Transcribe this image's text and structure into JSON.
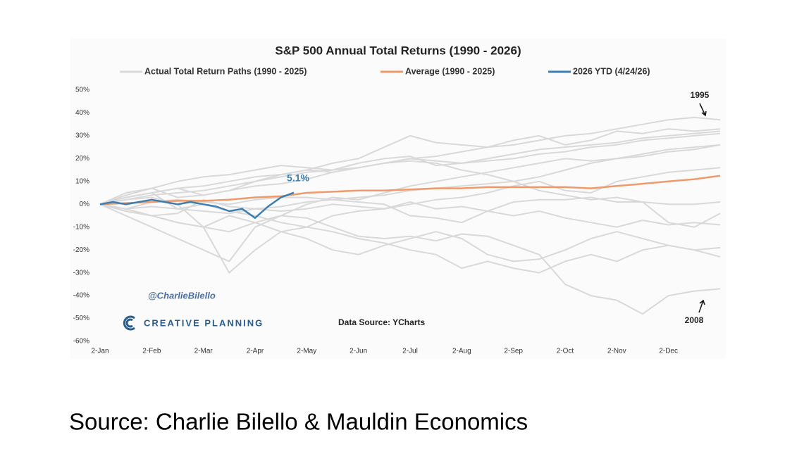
{
  "chart_data": {
    "type": "line",
    "title": "S&P 500 Annual Total Returns (1990 - 2026)",
    "x": [
      0,
      0.5,
      1,
      1.5,
      2,
      2.5,
      3,
      3.5,
      4,
      4.5,
      5,
      5.5,
      6,
      6.5,
      7,
      7.5,
      8,
      8.5,
      9,
      9.5,
      10,
      10.5,
      11,
      11.5,
      12
    ],
    "xlim": [
      0,
      12
    ],
    "xticks": [
      {
        "value": 0,
        "label": "2-Jan"
      },
      {
        "value": 1,
        "label": "2-Feb"
      },
      {
        "value": 2,
        "label": "2-Mar"
      },
      {
        "value": 3,
        "label": "2-Apr"
      },
      {
        "value": 4,
        "label": "2-May"
      },
      {
        "value": 5,
        "label": "2-Jun"
      },
      {
        "value": 6,
        "label": "2-Jul"
      },
      {
        "value": 7,
        "label": "2-Aug"
      },
      {
        "value": 8,
        "label": "2-Sep"
      },
      {
        "value": 9,
        "label": "2-Oct"
      },
      {
        "value": 10,
        "label": "2-Nov"
      },
      {
        "value": 11,
        "label": "2-Dec"
      }
    ],
    "ylim": [
      -60,
      50
    ],
    "yticks": [
      {
        "value": -60,
        "label": "-60%"
      },
      {
        "value": -50,
        "label": "-50%"
      },
      {
        "value": -40,
        "label": "-40%"
      },
      {
        "value": -30,
        "label": "-30%"
      },
      {
        "value": -20,
        "label": "-20%"
      },
      {
        "value": -10,
        "label": "-10%"
      },
      {
        "value": 0,
        "label": "0%"
      },
      {
        "value": 10,
        "label": "10%"
      },
      {
        "value": 20,
        "label": "20%"
      },
      {
        "value": 30,
        "label": "30%"
      },
      {
        "value": 40,
        "label": "40%"
      },
      {
        "value": 50,
        "label": "50%"
      }
    ],
    "grid": false,
    "series": [
      {
        "name": "Actual Total Return Paths (1990 - 2025)",
        "color": "#d9d9d9",
        "values": [
          [
            0,
            2,
            4,
            5,
            6,
            8,
            10,
            12,
            14,
            15,
            16,
            18,
            20,
            21,
            23,
            25,
            26,
            28,
            30,
            31,
            33,
            35,
            37,
            38,
            37
          ],
          [
            0,
            -3,
            -5,
            -8,
            -10,
            -12,
            -8,
            -5,
            -6,
            -10,
            -14,
            -15,
            -14,
            -16,
            -13,
            -14,
            -18,
            -22,
            -35,
            -40,
            -42,
            -48,
            -40,
            -38,
            -37
          ],
          [
            0,
            -2,
            -1,
            -2,
            0,
            -3,
            -5,
            -8,
            -10,
            -12,
            -15,
            -17,
            -20,
            -22,
            -28,
            -25,
            -28,
            -30,
            -25,
            -22,
            -25,
            -20,
            -18,
            -20,
            -23
          ],
          [
            0,
            2,
            3,
            0,
            -10,
            -30,
            -20,
            -12,
            -10,
            -5,
            -3,
            -2,
            0,
            2,
            3,
            5,
            8,
            10,
            6,
            5,
            10,
            12,
            14,
            15,
            16
          ],
          [
            0,
            -2,
            -5,
            -8,
            -10,
            -5,
            -8,
            -12,
            -15,
            -20,
            -22,
            -18,
            -15,
            -12,
            -15,
            -22,
            -25,
            -24,
            -20,
            -15,
            -12,
            -15,
            -18,
            -20,
            -19
          ],
          [
            0,
            3,
            5,
            7,
            4,
            6,
            10,
            13,
            15,
            18,
            20,
            25,
            30,
            27,
            26,
            25,
            28,
            30,
            26,
            28,
            32,
            31,
            33,
            32,
            33
          ],
          [
            0,
            3,
            5,
            7,
            8,
            10,
            12,
            13,
            15,
            14,
            16,
            18,
            20,
            19,
            18,
            20,
            22,
            24,
            25,
            26,
            27,
            29,
            30,
            31,
            32
          ],
          [
            0,
            -3,
            -5,
            -4,
            2,
            -1,
            -2,
            -3,
            -2,
            0,
            -1,
            -2,
            1,
            -2,
            -1,
            -3,
            -5,
            -3,
            -6,
            -8,
            -10,
            -7,
            -9,
            -8,
            -9
          ],
          [
            0,
            3,
            5,
            -2,
            -3,
            -4,
            -2,
            -1,
            1,
            2,
            3,
            4,
            6,
            7,
            8,
            9,
            10,
            6,
            4,
            2,
            3,
            1,
            -8,
            -10,
            -4
          ],
          [
            0,
            4,
            7,
            10,
            12,
            13,
            15,
            17,
            16,
            15,
            18,
            20,
            21,
            17,
            18,
            19,
            20,
            22,
            23,
            25,
            26,
            28,
            29,
            30,
            31
          ],
          [
            0,
            -5,
            -10,
            -15,
            -20,
            -25,
            -10,
            -5,
            0,
            3,
            2,
            5,
            8,
            10,
            12,
            14,
            16,
            18,
            20,
            19,
            20,
            21,
            23,
            24,
            26
          ],
          [
            0,
            -2,
            1,
            2,
            1,
            0,
            2,
            3,
            3,
            2,
            1,
            0,
            -5,
            -6,
            -8,
            -3,
            1,
            2,
            2,
            3,
            1,
            1,
            0,
            0,
            1
          ],
          [
            0,
            5,
            7,
            3,
            4,
            6,
            8,
            9,
            11,
            14,
            16,
            18,
            19,
            18,
            15,
            13,
            10,
            12,
            15,
            18,
            20,
            22,
            24,
            25,
            26
          ]
        ]
      },
      {
        "name": "Average (1990 - 2025)",
        "color": "#ee9a6a",
        "values": [
          0,
          0.5,
          1,
          1.5,
          1.5,
          2,
          3,
          3.5,
          5,
          5.5,
          6,
          6,
          6.5,
          7,
          7,
          7.5,
          7.5,
          7.5,
          7.5,
          7,
          8,
          9,
          10,
          11,
          12.5
        ]
      },
      {
        "name": "2026 YTD (4/24/26)",
        "color": "#3d7eb0",
        "x": [
          0,
          0.25,
          0.5,
          0.75,
          1,
          1.25,
          1.5,
          1.75,
          2,
          2.25,
          2.5,
          2.75,
          3,
          3.25,
          3.5,
          3.75
        ],
        "values": [
          0,
          1,
          0,
          1,
          2,
          1,
          0,
          1,
          0,
          -1,
          -3,
          -2,
          -6,
          -1,
          3,
          5.1
        ],
        "value_labels": [
          null,
          null,
          null,
          null,
          null,
          null,
          null,
          null,
          null,
          null,
          null,
          null,
          null,
          null,
          null,
          "5.1%"
        ]
      }
    ],
    "annotations": [
      "1995",
      "2008"
    ],
    "watermark": "@CharlieBilello",
    "logo": "CREATIVE PLANNING",
    "data_source": "Data Source: YCharts"
  },
  "caption": "Source: Charlie Bilello & Mauldin Economics"
}
